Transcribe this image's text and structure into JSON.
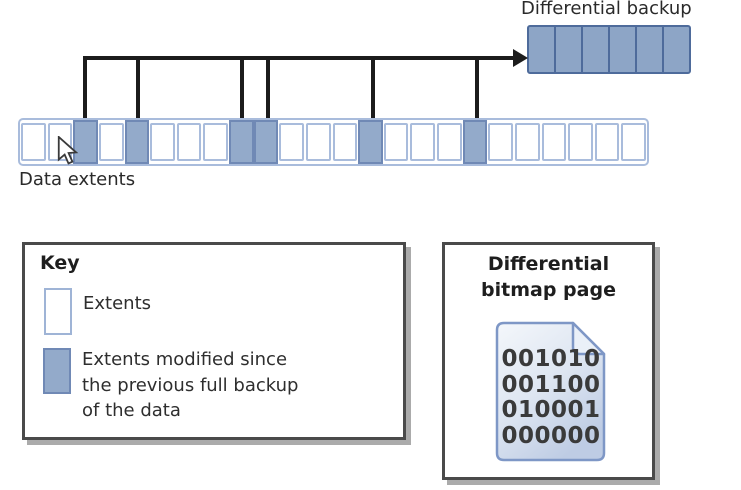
{
  "diagram": {
    "backup_label": "Differential backup",
    "row_label": "Data extents"
  },
  "differential_backup_strip": {
    "cell_count": 6
  },
  "extent_row": {
    "cell_count": 24,
    "modified_cells": [
      3,
      5,
      9,
      10,
      14,
      18
    ]
  },
  "key": {
    "title": "Key",
    "items": [
      {
        "swatch": "unmodified-extent",
        "lines": [
          "Extents"
        ]
      },
      {
        "swatch": "modified-extent",
        "lines": [
          "Extents modified since",
          "the previous full backup",
          "of the data"
        ]
      }
    ]
  },
  "bitmap_page": {
    "title_lines": [
      "Differential",
      "bitmap page"
    ],
    "binary_rows": [
      "001010",
      "001100",
      "010001",
      "000000"
    ]
  },
  "colors": {
    "modified_extent_fill": "#93aaca",
    "modified_extent_border": "#7089b5",
    "extent_border": "#a9bcdc",
    "backup_cell_fill": "#8da5c6",
    "backup_cell_border": "#4e6b9b",
    "connector_line": "#1c1c1c",
    "panel_border": "#4a4a4a",
    "panel_shadow": "#ababab",
    "page_icon_border": "#7e97c6"
  }
}
